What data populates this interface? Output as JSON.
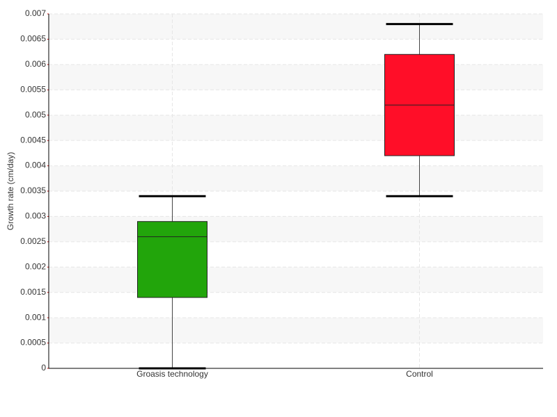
{
  "chart_data": {
    "type": "box",
    "y_label": "Growth rate (cm/day)",
    "categories": [
      "Groasis technology",
      "Control"
    ],
    "boxes": [
      {
        "min": 0,
        "q1": 0.0014,
        "median": 0.0026,
        "q3": 0.0029,
        "max": 0.0034,
        "color": "#22a50b"
      },
      {
        "min": 0.0034,
        "q1": 0.0042,
        "median": 0.0052,
        "q3": 0.0062,
        "max": 0.0068,
        "color": "#ff0e28"
      }
    ],
    "ylim": [
      0,
      0.007
    ],
    "yticks": [
      0,
      0.0005,
      0.001,
      0.0015,
      0.002,
      0.0025,
      0.003,
      0.0035,
      0.004,
      0.0045,
      0.005,
      0.0055,
      0.006,
      0.0065,
      0.007
    ],
    "grid": true
  }
}
